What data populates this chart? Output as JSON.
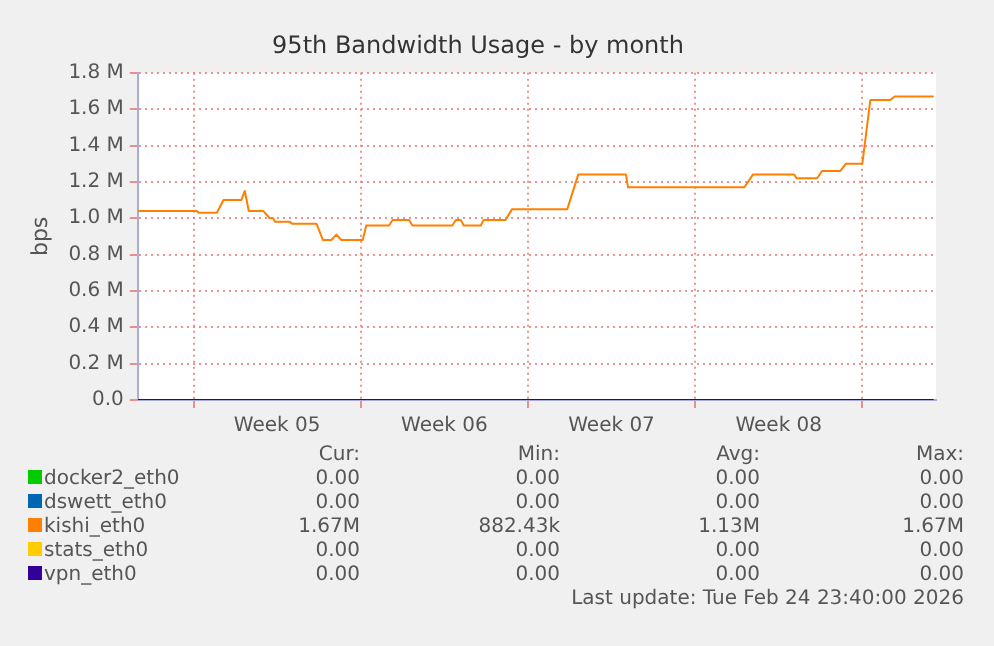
{
  "chart_data": {
    "type": "line",
    "title": "95th Bandwidth Usage - by month",
    "ylabel": "bps",
    "xlim": [
      "2026-01-22T16:00",
      "2026-02-25T02:00"
    ],
    "xticks": [
      {
        "value": "2026-01-25T00:00",
        "label": null
      },
      {
        "value": "2026-01-28T12:00",
        "label": "Week 05"
      },
      {
        "value": "2026-02-01T00:00",
        "label": null
      },
      {
        "value": "2026-02-04T12:00",
        "label": "Week 06"
      },
      {
        "value": "2026-02-08T00:00",
        "label": null
      },
      {
        "value": "2026-02-11T12:00",
        "label": "Week 07"
      },
      {
        "value": "2026-02-15T00:00",
        "label": null
      },
      {
        "value": "2026-02-18T12:00",
        "label": "Week 08"
      },
      {
        "value": "2026-02-22T00:00",
        "label": null
      }
    ],
    "ylim": [
      0,
      1800000
    ],
    "yticks": [
      {
        "value": 0,
        "label": "0.0"
      },
      {
        "value": 200000,
        "label": "0.2 M"
      },
      {
        "value": 400000,
        "label": "0.4 M"
      },
      {
        "value": 600000,
        "label": "0.6 M"
      },
      {
        "value": 800000,
        "label": "0.8 M"
      },
      {
        "value": 1000000,
        "label": "1.0 M"
      },
      {
        "value": 1200000,
        "label": "1.2 M"
      },
      {
        "value": 1400000,
        "label": "1.4 M"
      },
      {
        "value": 1600000,
        "label": "1.6 M"
      },
      {
        "value": 1800000,
        "label": "1.8 M"
      }
    ],
    "grid": true,
    "legend": "bottom",
    "marker": "none",
    "line_style": "solid",
    "series": [
      {
        "name": "docker2_eth0",
        "color": "#00cc00"
      },
      {
        "name": "dswett_eth0",
        "color": "#0066b3"
      },
      {
        "name": "kishi_eth0",
        "color": "#ff8000",
        "x": [
          "2026-01-22T16:00",
          "2026-01-25T03:30",
          "2026-01-25T05:00",
          "2026-01-25T23:30",
          "2026-01-26T06:00",
          "2026-01-27T00:00",
          "2026-01-27T03:30",
          "2026-01-27T07:30",
          "2026-01-27T22:00",
          "2026-01-28T04:30",
          "2026-01-28T08:00",
          "2026-01-28T10:00",
          "2026-01-29T00:30",
          "2026-01-29T03:00",
          "2026-01-30T03:30",
          "2026-01-30T10:00",
          "2026-01-30T18:30",
          "2026-01-30T23:30",
          "2026-01-31T04:30",
          "2026-02-01T02:00",
          "2026-02-01T05:30",
          "2026-02-02T04:30",
          "2026-02-02T08:00",
          "2026-02-03T00:30",
          "2026-02-03T04:00",
          "2026-02-04T20:00",
          "2026-02-04T23:30",
          "2026-02-05T04:30",
          "2026-02-05T07:30",
          "2026-02-06T00:30",
          "2026-02-06T03:30",
          "2026-02-07T01:30",
          "2026-02-07T08:00",
          "2026-02-09T15:30",
          "2026-02-10T02:30",
          "2026-02-12T02:30",
          "2026-02-12T04:30",
          "2026-02-17T01:30",
          "2026-02-17T10:00",
          "2026-02-19T03:30",
          "2026-02-19T06:00",
          "2026-02-20T02:30",
          "2026-02-20T07:30",
          "2026-02-21T02:00",
          "2026-02-21T07:30",
          "2026-02-22T00:00",
          "2026-02-22T08:00",
          "2026-02-23T04:00",
          "2026-02-23T08:30",
          "2026-02-24T23:40"
        ],
        "values": [
          1040000,
          1040000,
          1030000,
          1030000,
          1100000,
          1100000,
          1150000,
          1040000,
          1040000,
          1000000,
          1000000,
          980000,
          980000,
          970000,
          970000,
          880000,
          880000,
          910000,
          880000,
          880000,
          960000,
          960000,
          990000,
          990000,
          960000,
          960000,
          990000,
          990000,
          960000,
          960000,
          990000,
          990000,
          1050000,
          1050000,
          1240000,
          1240000,
          1170000,
          1170000,
          1240000,
          1240000,
          1220000,
          1220000,
          1260000,
          1260000,
          1300000,
          1300000,
          1650000,
          1650000,
          1670000,
          1670000
        ]
      },
      {
        "name": "stats_eth0",
        "color": "#ffcc00"
      },
      {
        "name": "vpn_eth0",
        "color": "#330099",
        "x": [
          "2026-01-22T16:00",
          "2026-02-24T23:40"
        ],
        "values": [
          0,
          0
        ]
      }
    ],
    "annotations": [
      "Cur:",
      "Min:",
      "Avg:",
      "Max:",
      "0.00",
      "0.00",
      "0.00",
      "0.00",
      "0.00",
      "0.00",
      "0.00",
      "0.00",
      "1.67M",
      "882.43k",
      "1.13M",
      "1.67M",
      "0.00",
      "0.00",
      "0.00",
      "0.00",
      "0.00",
      "0.00",
      "0.00",
      "0.00",
      "Last update: Tue Feb 24 23:40:00 2026"
    ]
  }
}
